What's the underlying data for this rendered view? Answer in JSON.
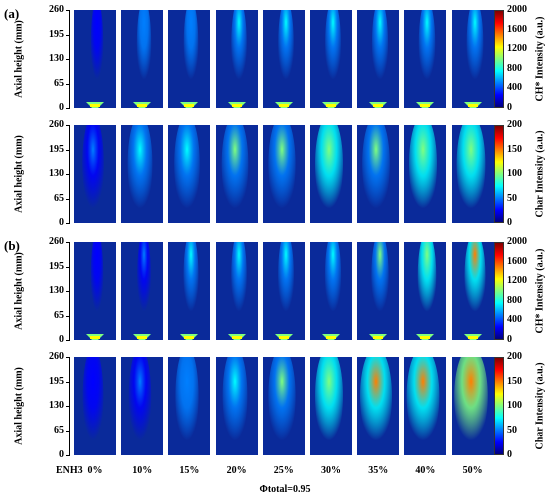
{
  "panels": [
    {
      "label": "(a)",
      "rows": [
        {
          "ylabel": "Axial height (mm)",
          "yticks": [
            "260",
            "195",
            "130",
            "65",
            "0"
          ],
          "cbar_title": "CH* Intensity (a.u.)",
          "cbar_ticks": [
            "2000",
            "1600",
            "1200",
            "800",
            "400",
            "0"
          ]
        },
        {
          "ylabel": "Axial height (mm)",
          "yticks": [
            "260",
            "195",
            "130",
            "65",
            "0"
          ],
          "cbar_title": "Char Intensity (a.u.)",
          "cbar_ticks": [
            "200",
            "150",
            "100",
            "50",
            "0"
          ]
        }
      ]
    },
    {
      "label": "(b)",
      "rows": [
        {
          "ylabel": "Axial height (mm)",
          "yticks": [
            "260",
            "195",
            "130",
            "65",
            "0"
          ],
          "cbar_title": "CH* Intensity (a.u.)",
          "cbar_ticks": [
            "2000",
            "1600",
            "1200",
            "800",
            "400",
            "0"
          ]
        },
        {
          "ylabel": "Axial height (mm)",
          "yticks": [
            "260",
            "195",
            "130",
            "65",
            "0"
          ],
          "cbar_title": "Char Intensity (a.u.)",
          "cbar_ticks": [
            "200",
            "150",
            "100",
            "50",
            "0"
          ]
        }
      ]
    }
  ],
  "x_prefix": "ENH3",
  "x_values": [
    "0%",
    "10%",
    "15%",
    "20%",
    "25%",
    "30%",
    "35%",
    "40%",
    "50%"
  ],
  "footer": "Φtotal=0.95",
  "colors": {
    "background_blue": "#0a2a9a",
    "colormap": [
      "#00007f",
      "#0000ff",
      "#007fff",
      "#00ffff",
      "#7fff7f",
      "#ffff00",
      "#ff7f00",
      "#ff0000",
      "#7f0000"
    ]
  },
  "intensity_levels": {
    "a_ch": [
      0.05,
      0.2,
      0.22,
      0.3,
      0.3,
      0.32,
      0.35,
      0.38,
      0.4
    ],
    "a_char": [
      0.1,
      0.3,
      0.35,
      0.42,
      0.45,
      0.5,
      0.48,
      0.5,
      0.55
    ],
    "b_ch": [
      0.05,
      0.15,
      0.25,
      0.3,
      0.32,
      0.35,
      0.45,
      0.55,
      0.75
    ],
    "b_char": [
      0.05,
      0.15,
      0.2,
      0.3,
      0.45,
      0.5,
      0.75,
      0.8,
      0.85
    ]
  }
}
